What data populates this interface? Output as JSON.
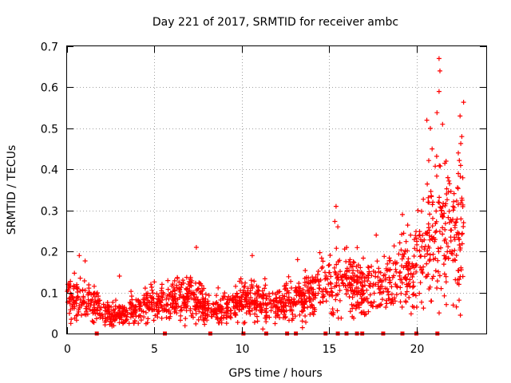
{
  "chart_data": {
    "type": "scatter",
    "title": "Day 221 of 2017, SRMTID for receiver ambc",
    "xlabel": "GPS time / hours",
    "ylabel": "SRMTID / TECUs",
    "xlim": [
      0,
      24
    ],
    "ylim": [
      0,
      0.7
    ],
    "grid": true,
    "legend": "none",
    "marker": "plus",
    "xticks": [
      0,
      5,
      10,
      15,
      20
    ],
    "xtick_labels": [
      "0",
      "5",
      "10",
      "15",
      "20"
    ],
    "yticks": [
      0,
      0.1,
      0.2,
      0.3,
      0.4,
      0.5,
      0.6,
      0.7
    ],
    "ytick_labels": [
      "0",
      "0.1",
      "0.2",
      "0.3",
      "0.4",
      "0.5",
      "0.6",
      "0.7"
    ],
    "series": [
      {
        "name": "SRMTID",
        "color": "#ff0000",
        "profile_note": "approximate typical levels (TECUs) over time; scattered points are drawn around these",
        "profile": [
          [
            0,
            0.08
          ],
          [
            1,
            0.09
          ],
          [
            2,
            0.05
          ],
          [
            3,
            0.04
          ],
          [
            4,
            0.06
          ],
          [
            5,
            0.07
          ],
          [
            6,
            0.08
          ],
          [
            7,
            0.09
          ],
          [
            8,
            0.06
          ],
          [
            9,
            0.06
          ],
          [
            10,
            0.08
          ],
          [
            11,
            0.08
          ],
          [
            12,
            0.07
          ],
          [
            13,
            0.08
          ],
          [
            14,
            0.1
          ],
          [
            15,
            0.12
          ],
          [
            16,
            0.13
          ],
          [
            17,
            0.1
          ],
          [
            18,
            0.12
          ],
          [
            19,
            0.14
          ],
          [
            20,
            0.15
          ],
          [
            21,
            0.25
          ],
          [
            22,
            0.22
          ],
          [
            22.7,
            0.25
          ]
        ],
        "highlighted_points": [
          [
            0.05,
            0.12
          ],
          [
            0.7,
            0.19
          ],
          [
            3.0,
            0.14
          ],
          [
            4.8,
            0.12
          ],
          [
            7.4,
            0.21
          ],
          [
            10.6,
            0.19
          ],
          [
            13.2,
            0.18
          ],
          [
            15.4,
            0.31
          ],
          [
            15.5,
            0.26
          ],
          [
            16.2,
            0.18
          ],
          [
            17.7,
            0.24
          ],
          [
            19.2,
            0.29
          ],
          [
            20.2,
            0.24
          ],
          [
            20.6,
            0.52
          ],
          [
            20.8,
            0.5
          ],
          [
            20.9,
            0.45
          ],
          [
            21.3,
            0.67
          ],
          [
            21.35,
            0.64
          ],
          [
            21.3,
            0.59
          ],
          [
            21.5,
            0.51
          ],
          [
            21.7,
            0.42
          ],
          [
            21.8,
            0.38
          ],
          [
            22.1,
            0.31
          ],
          [
            22.4,
            0.44
          ],
          [
            22.5,
            0.53
          ],
          [
            22.6,
            0.48
          ],
          [
            22.6,
            0.33
          ],
          [
            22.7,
            0.27
          ]
        ],
        "zero_points": [
          1.7,
          5.6,
          8.2,
          10.1,
          11.4,
          12.6,
          13.1,
          14.8,
          15.5,
          16.0,
          16.6,
          16.9,
          18.1,
          19.2,
          20.0,
          21.2
        ]
      }
    ]
  }
}
